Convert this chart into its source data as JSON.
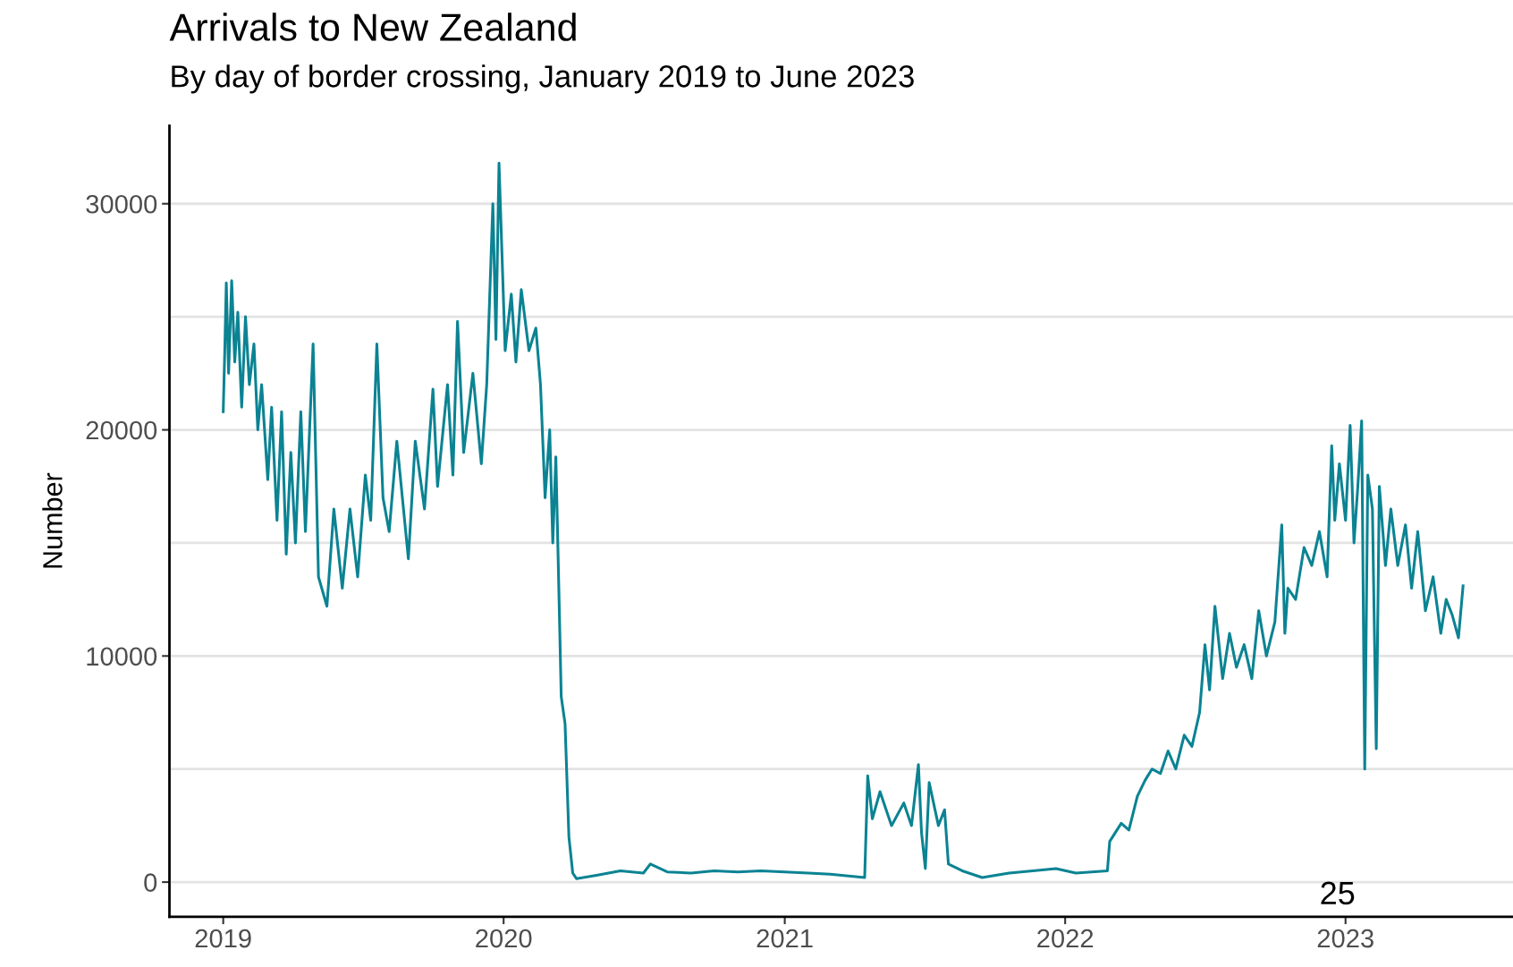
{
  "chart_data": {
    "type": "line",
    "title": "Arrivals to New Zealand",
    "subtitle": "By day of border crossing, January 2019 to June 2023",
    "ylabel": "Number",
    "annotations": [
      "25"
    ],
    "series": [
      {
        "color": "#0b8393",
        "x": [
          "2019-01-01",
          "2019-01-03",
          "2019-01-05",
          "2019-01-08",
          "2019-01-12",
          "2019-01-16",
          "2019-01-20",
          "2019-01-25",
          "2019-01-30",
          "2019-02-04",
          "2019-02-10",
          "2019-02-15",
          "2019-02-20",
          "2019-02-28",
          "2019-03-05",
          "2019-03-12",
          "2019-03-18",
          "2019-03-24",
          "2019-03-30",
          "2019-04-05",
          "2019-04-12",
          "2019-04-18",
          "2019-04-28",
          "2019-05-05",
          "2019-05-16",
          "2019-05-25",
          "2019-06-05",
          "2019-06-15",
          "2019-06-25",
          "2019-07-05",
          "2019-07-12",
          "2019-07-20",
          "2019-07-28",
          "2019-08-05",
          "2019-08-15",
          "2019-08-30",
          "2019-09-08",
          "2019-09-20",
          "2019-10-01",
          "2019-10-07",
          "2019-10-20",
          "2019-10-27",
          "2019-11-02",
          "2019-11-10",
          "2019-11-22",
          "2019-12-03",
          "2019-12-10",
          "2019-12-18",
          "2019-12-22",
          "2019-12-26",
          "2020-01-03",
          "2020-01-11",
          "2020-01-17",
          "2020-01-24",
          "2020-02-03",
          "2020-02-12",
          "2020-02-18",
          "2020-02-24",
          "2020-03-01",
          "2020-03-05",
          "2020-03-09",
          "2020-03-13",
          "2020-03-16",
          "2020-03-21",
          "2020-03-26",
          "2020-03-31",
          "2020-04-05",
          "2020-05-01",
          "2020-06-01",
          "2020-07-01",
          "2020-07-10",
          "2020-08-01",
          "2020-09-01",
          "2020-10-01",
          "2020-11-01",
          "2020-12-01",
          "2021-01-01",
          "2021-02-01",
          "2021-03-01",
          "2021-04-15",
          "2021-04-19",
          "2021-04-25",
          "2021-05-05",
          "2021-05-20",
          "2021-06-05",
          "2021-06-15",
          "2021-06-24",
          "2021-06-28",
          "2021-07-03",
          "2021-07-08",
          "2021-07-20",
          "2021-07-28",
          "2021-08-02",
          "2021-08-20",
          "2021-09-15",
          "2021-10-20",
          "2021-11-20",
          "2021-12-20",
          "2022-01-15",
          "2022-02-25",
          "2022-02-28",
          "2022-03-15",
          "2022-03-25",
          "2022-04-05",
          "2022-04-15",
          "2022-04-24",
          "2022-05-05",
          "2022-05-15",
          "2022-05-25",
          "2022-06-05",
          "2022-06-15",
          "2022-06-25",
          "2022-07-02",
          "2022-07-08",
          "2022-07-15",
          "2022-07-25",
          "2022-08-03",
          "2022-08-12",
          "2022-08-22",
          "2022-09-01",
          "2022-09-10",
          "2022-09-20",
          "2022-10-01",
          "2022-10-10",
          "2022-10-14",
          "2022-10-18",
          "2022-10-28",
          "2022-11-08",
          "2022-11-18",
          "2022-11-28",
          "2022-12-08",
          "2022-12-14",
          "2022-12-18",
          "2022-12-24",
          "2023-01-01",
          "2023-01-07",
          "2023-01-12",
          "2023-01-17",
          "2023-01-22",
          "2023-01-26",
          "2023-01-30",
          "2023-02-05",
          "2023-02-10",
          "2023-02-14",
          "2023-02-22",
          "2023-03-01",
          "2023-03-10",
          "2023-03-20",
          "2023-03-28",
          "2023-04-05",
          "2023-04-15",
          "2023-04-25",
          "2023-05-05",
          "2023-05-12",
          "2023-05-20",
          "2023-05-28",
          "2023-06-03"
        ],
        "values": [
          20800,
          23500,
          26500,
          22500,
          26600,
          23000,
          25200,
          21000,
          25000,
          22000,
          23800,
          20000,
          22000,
          17800,
          21000,
          16000,
          20800,
          14500,
          19000,
          15000,
          20800,
          15500,
          23800,
          13500,
          12200,
          16500,
          13000,
          16500,
          13500,
          18000,
          16000,
          23800,
          17000,
          15500,
          19500,
          14300,
          19500,
          16500,
          21800,
          17500,
          22000,
          18000,
          24800,
          19000,
          22500,
          18500,
          22000,
          30000,
          24000,
          31800,
          23500,
          26000,
          23000,
          26200,
          23500,
          24500,
          22000,
          17000,
          20000,
          15000,
          18800,
          12800,
          8200,
          7000,
          2000,
          400,
          150,
          300,
          500,
          400,
          800,
          450,
          400,
          500,
          450,
          500,
          450,
          400,
          350,
          200,
          4700,
          2800,
          4000,
          2500,
          3500,
          2500,
          5200,
          2200,
          600,
          4400,
          2500,
          3200,
          800,
          500,
          200,
          400,
          500,
          600,
          400,
          500,
          1800,
          2600,
          2300,
          3800,
          4500,
          5000,
          4800,
          5800,
          5000,
          6500,
          6000,
          7500,
          10500,
          8500,
          12200,
          9000,
          11000,
          9500,
          10500,
          9000,
          12000,
          10000,
          11500,
          15800,
          11000,
          13000,
          12500,
          14800,
          14000,
          15500,
          13500,
          19300,
          16000,
          18500,
          16000,
          20200,
          15000,
          17500,
          20400,
          5000,
          18000,
          16500,
          5900,
          17500,
          14000,
          16500,
          14000,
          15800,
          13000,
          15500,
          12000,
          13500,
          11000,
          12500,
          11800,
          10800,
          13100
        ]
      }
    ],
    "xlim": [
      "2018-10-23",
      "2023-08-07"
    ],
    "xticks": [
      {
        "value": "2019-01-01",
        "label": "2019"
      },
      {
        "value": "2020-01-01",
        "label": "2020"
      },
      {
        "value": "2021-01-01",
        "label": "2021"
      },
      {
        "value": "2022-01-01",
        "label": "2022"
      },
      {
        "value": "2023-01-01",
        "label": "2023"
      }
    ],
    "ylim": [
      -1530,
      33450
    ],
    "yticks": [
      0,
      {
        "value": 5000,
        "label": null
      },
      10000,
      {
        "value": 15000,
        "label": null
      },
      20000,
      {
        "value": 25000,
        "label": null
      },
      30000
    ],
    "grid": "y",
    "line_style": "solid",
    "marker": "none"
  }
}
